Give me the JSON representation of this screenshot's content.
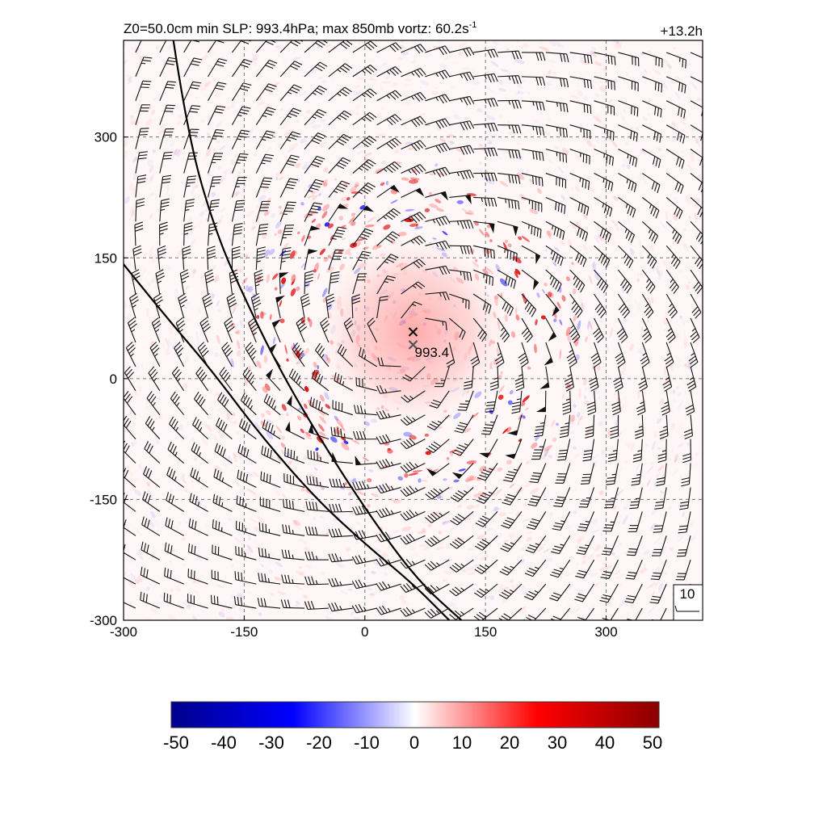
{
  "chart_data": {
    "type": "heatmap",
    "title_left": "Z0=50.0cm  min SLP: 993.4hPa; max 850mb vortz:  60.2s",
    "title_left_sup": "-1",
    "title_right": "+13.2h",
    "xlim": [
      -300,
      420
    ],
    "ylim": [
      -300,
      420
    ],
    "x_ticks": [
      -300,
      -150,
      0,
      150,
      300
    ],
    "y_ticks": [
      -300,
      -150,
      0,
      150,
      300
    ],
    "x_tick_labels": [
      "-300",
      "-150",
      "0",
      "150",
      "300"
    ],
    "y_tick_labels": [
      "-300",
      "-150",
      "0",
      "150",
      "300"
    ],
    "grid": true,
    "storm_center": {
      "x": 60,
      "y": 58,
      "marker": "x"
    },
    "min_slp_marker": {
      "x": 60,
      "y": 42,
      "label": "993.4"
    },
    "wind_barbs": {
      "spacing": 30,
      "vortex_center": {
        "x": 60,
        "y": 50
      },
      "rmw": 170,
      "reference_label": "10"
    },
    "coastlines": [
      {
        "name": "coast-1",
        "points": [
          [
            -238,
            420
          ],
          [
            -220,
            300
          ],
          [
            -185,
            180
          ],
          [
            -145,
            90
          ],
          [
            -100,
            0
          ],
          [
            -40,
            -100
          ],
          [
            20,
            -190
          ],
          [
            70,
            -255
          ],
          [
            120,
            -300
          ]
        ]
      },
      {
        "name": "coast-2",
        "points": [
          [
            -300,
            142
          ],
          [
            -250,
            80
          ],
          [
            -190,
            10
          ],
          [
            -130,
            -70
          ],
          [
            -60,
            -150
          ],
          [
            0,
            -205
          ],
          [
            60,
            -255
          ],
          [
            105,
            -300
          ]
        ]
      }
    ],
    "colorbar": {
      "min": -50,
      "max": 50,
      "tick_values": [
        -50,
        -40,
        -30,
        -20,
        -10,
        0,
        10,
        20,
        30,
        40,
        50
      ],
      "tick_labels": [
        "-50",
        "-40",
        "-30",
        "-20",
        "-10",
        "0",
        "10",
        "20",
        "30",
        "40",
        "50"
      ],
      "colors": [
        "#00008b",
        "#0000ff",
        "#ffffff",
        "#ff0000",
        "#8b0000"
      ]
    }
  }
}
